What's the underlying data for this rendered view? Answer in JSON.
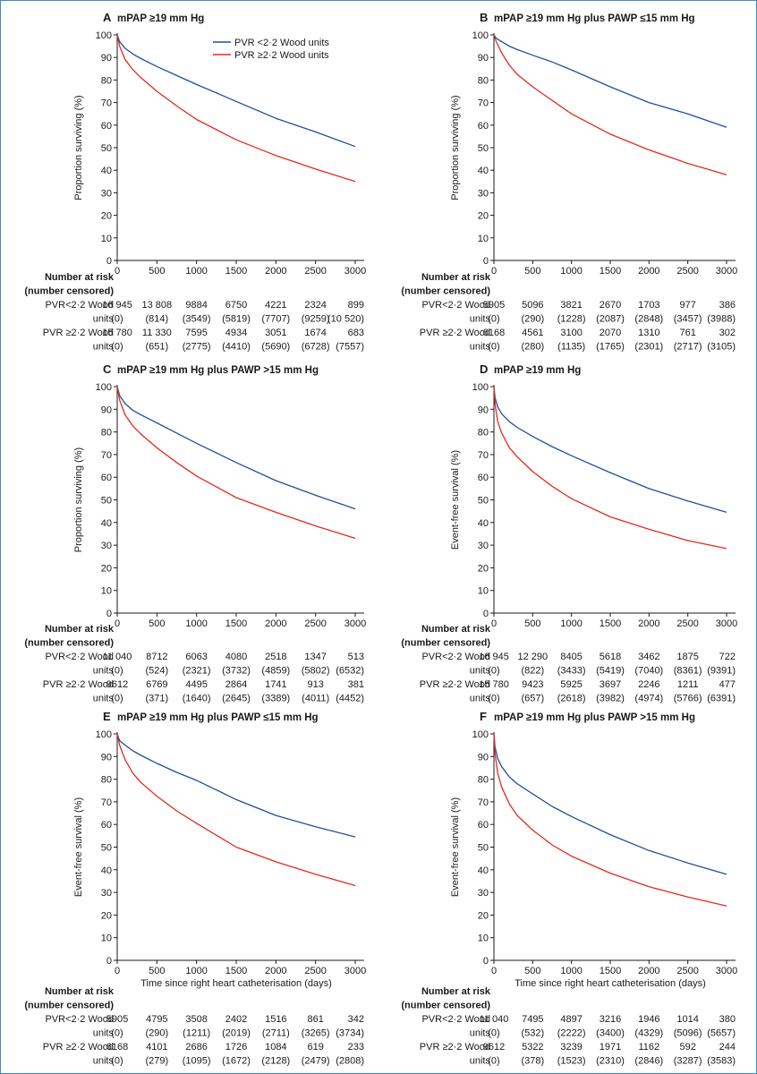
{
  "legend": {
    "items": [
      {
        "label": "PVR <2·2 Wood units",
        "color": "#1f4f9e"
      },
      {
        "label": "PVR ≥2·2 Wood units",
        "color": "#e32a1c"
      }
    ]
  },
  "risk_table": {
    "header_line1": "Number at risk",
    "header_line2": "(number censored)",
    "group_low_line1": "PVR<2·2 Wood",
    "group_high_line1": "PVR ≥2·2 Wood",
    "units_label": "units"
  },
  "chart_data": [
    {
      "panel": "A",
      "title": "mPAP ≥19 mm Hg",
      "type": "line",
      "ylabel": "Proportion surviving (%)",
      "xlabel": "",
      "xlim": [
        0,
        3000
      ],
      "ylim": [
        0,
        100
      ],
      "xticks": [
        0,
        500,
        1000,
        1500,
        2000,
        2500,
        3000
      ],
      "yticks": [
        0,
        10,
        20,
        30,
        40,
        50,
        60,
        70,
        80,
        90,
        100
      ],
      "series": [
        {
          "name": "PVR <2·2 Wood units",
          "color": "#1f4f9e",
          "x": [
            0,
            30,
            100,
            200,
            300,
            500,
            750,
            1000,
            1500,
            2000,
            2500,
            3000
          ],
          "y": [
            100,
            97,
            94,
            91.5,
            89.5,
            86,
            82,
            78,
            70.5,
            63,
            57,
            50.5
          ]
        },
        {
          "name": "PVR ≥2·2 Wood units",
          "color": "#e32a1c",
          "x": [
            0,
            30,
            100,
            200,
            300,
            500,
            750,
            1000,
            1500,
            2000,
            2500,
            3000
          ],
          "y": [
            100,
            95,
            89,
            84.5,
            81,
            75,
            68.5,
            62.5,
            53.5,
            46.5,
            40.5,
            35
          ]
        }
      ],
      "risk_low": [
        "16 945",
        "13 808",
        "9884",
        "6750",
        "4221",
        "2324",
        "899"
      ],
      "cens_low": [
        "(0)",
        "(814)",
        "(3549)",
        "(5819)",
        "(7707)",
        "(9259)",
        "(10 520)"
      ],
      "risk_high": [
        "15 780",
        "11 330",
        "7595",
        "4934",
        "3051",
        "1674",
        "683"
      ],
      "cens_high": [
        "(0)",
        "(651)",
        "(2775)",
        "(4410)",
        "(5690)",
        "(6728)",
        "(7557)"
      ]
    },
    {
      "panel": "B",
      "title": "mPAP ≥19 mm Hg plus PAWP ≤15 mm Hg",
      "type": "line",
      "ylabel": "Proportion surviving (%)",
      "xlabel": "",
      "xlim": [
        0,
        3000
      ],
      "ylim": [
        0,
        100
      ],
      "xticks": [
        0,
        500,
        1000,
        1500,
        2000,
        2500,
        3000
      ],
      "yticks": [
        0,
        10,
        20,
        30,
        40,
        50,
        60,
        70,
        80,
        90,
        100
      ],
      "series": [
        {
          "name": "PVR <2·2 Wood units",
          "color": "#1f4f9e",
          "x": [
            0,
            30,
            100,
            200,
            300,
            500,
            750,
            1000,
            1500,
            2000,
            2500,
            3000
          ],
          "y": [
            100,
            98.5,
            97,
            95,
            93.5,
            91,
            88,
            84.5,
            77,
            70,
            65,
            59
          ]
        },
        {
          "name": "PVR ≥2·2 Wood units",
          "color": "#e32a1c",
          "x": [
            0,
            30,
            100,
            200,
            300,
            500,
            750,
            1000,
            1500,
            2000,
            2500,
            3000
          ],
          "y": [
            100,
            97,
            92,
            86.5,
            82.5,
            77,
            71,
            65,
            56,
            49,
            43,
            38
          ]
        }
      ],
      "risk_low": [
        "5905",
        "5096",
        "3821",
        "2670",
        "1703",
        "977",
        "386"
      ],
      "cens_low": [
        "(0)",
        "(290)",
        "(1228)",
        "(2087)",
        "(2848)",
        "(3457)",
        "(3988)"
      ],
      "risk_high": [
        "6168",
        "4561",
        "3100",
        "2070",
        "1310",
        "761",
        "302"
      ],
      "cens_high": [
        "(0)",
        "(280)",
        "(1135)",
        "(1765)",
        "(2301)",
        "(2717)",
        "(3105)"
      ]
    },
    {
      "panel": "C",
      "title": "mPAP ≥19 mm Hg plus PAWP >15 mm Hg",
      "type": "line",
      "ylabel": "Proportion surviving (%)",
      "xlabel": "",
      "xlim": [
        0,
        3000
      ],
      "ylim": [
        0,
        100
      ],
      "xticks": [
        0,
        500,
        1000,
        1500,
        2000,
        2500,
        3000
      ],
      "yticks": [
        0,
        10,
        20,
        30,
        40,
        50,
        60,
        70,
        80,
        90,
        100
      ],
      "series": [
        {
          "name": "PVR <2·2 Wood units",
          "color": "#1f4f9e",
          "x": [
            0,
            30,
            100,
            200,
            300,
            500,
            750,
            1000,
            1500,
            2000,
            2500,
            3000
          ],
          "y": [
            100,
            96,
            92.5,
            89.5,
            87.5,
            84,
            79.5,
            75,
            66.5,
            58.5,
            52,
            46
          ]
        },
        {
          "name": "PVR ≥2·2 Wood units",
          "color": "#e32a1c",
          "x": [
            0,
            30,
            100,
            200,
            300,
            500,
            750,
            1000,
            1500,
            2000,
            2500,
            3000
          ],
          "y": [
            100,
            94,
            87.5,
            82.5,
            79,
            73,
            66.5,
            60.5,
            51,
            44.5,
            38.5,
            33
          ]
        }
      ],
      "risk_low": [
        "11 040",
        "8712",
        "6063",
        "4080",
        "2518",
        "1347",
        "513"
      ],
      "cens_low": [
        "(0)",
        "(524)",
        "(2321)",
        "(3732)",
        "(4859)",
        "(5802)",
        "(6532)"
      ],
      "risk_high": [
        "9612",
        "6769",
        "4495",
        "2864",
        "1741",
        "913",
        "381"
      ],
      "cens_high": [
        "(0)",
        "(371)",
        "(1640)",
        "(2645)",
        "(3389)",
        "(4011)",
        "(4452)"
      ]
    },
    {
      "panel": "D",
      "title": "mPAP ≥19 mm Hg",
      "type": "line",
      "ylabel": "Event-free survival (%)",
      "xlabel": "",
      "xlim": [
        0,
        3000
      ],
      "ylim": [
        0,
        100
      ],
      "xticks": [
        0,
        500,
        1000,
        1500,
        2000,
        2500,
        3000
      ],
      "yticks": [
        0,
        10,
        20,
        30,
        40,
        50,
        60,
        70,
        80,
        90,
        100
      ],
      "series": [
        {
          "name": "PVR <2·2 Wood units",
          "color": "#1f4f9e",
          "x": [
            0,
            15,
            50,
            100,
            200,
            300,
            500,
            750,
            1000,
            1500,
            2000,
            2500,
            3000
          ],
          "y": [
            100,
            95,
            91,
            88,
            84.5,
            82,
            78,
            73.5,
            69.5,
            62,
            55,
            49.5,
            44.5
          ]
        },
        {
          "name": "PVR ≥2·2 Wood units",
          "color": "#e32a1c",
          "x": [
            0,
            15,
            50,
            100,
            200,
            300,
            500,
            750,
            1000,
            1500,
            2000,
            2500,
            3000
          ],
          "y": [
            100,
            92,
            84.5,
            79.5,
            73,
            69,
            62.5,
            56,
            50.5,
            42.5,
            37,
            32,
            28.5
          ]
        }
      ],
      "risk_low": [
        "16 945",
        "12 290",
        "8405",
        "5618",
        "3462",
        "1875",
        "722"
      ],
      "cens_low": [
        "(0)",
        "(822)",
        "(3433)",
        "(5419)",
        "(7040)",
        "(8361)",
        "(9391)"
      ],
      "risk_high": [
        "15 780",
        "9423",
        "5925",
        "3697",
        "2246",
        "1211",
        "477"
      ],
      "cens_high": [
        "(0)",
        "(657)",
        "(2618)",
        "(3982)",
        "(4974)",
        "(5766)",
        "(6391)"
      ]
    },
    {
      "panel": "E",
      "title": "mPAP ≥19 mm Hg plus PAWP ≤15 mm Hg",
      "type": "line",
      "ylabel": "Event-free survival (%)",
      "xlabel": "Time since right heart catheterisation (days)",
      "xlim": [
        0,
        3000
      ],
      "ylim": [
        0,
        100
      ],
      "xticks": [
        0,
        500,
        1000,
        1500,
        2000,
        2500,
        3000
      ],
      "yticks": [
        0,
        10,
        20,
        30,
        40,
        50,
        60,
        70,
        80,
        90,
        100
      ],
      "series": [
        {
          "name": "PVR <2·2 Wood units",
          "color": "#1f4f9e",
          "x": [
            0,
            30,
            100,
            200,
            300,
            500,
            750,
            1000,
            1500,
            2000,
            2500,
            3000
          ],
          "y": [
            100,
            97,
            95,
            92.5,
            90.5,
            87,
            83,
            79.5,
            71,
            64,
            59,
            54.5
          ]
        },
        {
          "name": "PVR ≥2·2 Wood units",
          "color": "#e32a1c",
          "x": [
            0,
            30,
            100,
            200,
            300,
            500,
            750,
            1000,
            1500,
            2000,
            2500,
            3000
          ],
          "y": [
            100,
            95,
            88.5,
            82.5,
            78.5,
            72.5,
            66,
            60.5,
            50,
            43.5,
            38,
            33
          ]
        }
      ],
      "risk_low": [
        "5905",
        "4795",
        "3508",
        "2402",
        "1516",
        "861",
        "342"
      ],
      "cens_low": [
        "(0)",
        "(290)",
        "(1211)",
        "(2019)",
        "(2711)",
        "(3265)",
        "(3734)"
      ],
      "risk_high": [
        "6168",
        "4101",
        "2686",
        "1726",
        "1084",
        "619",
        "233"
      ],
      "cens_high": [
        "(0)",
        "(279)",
        "(1095)",
        "(1672)",
        "(2128)",
        "(2479)",
        "(2808)"
      ]
    },
    {
      "panel": "F",
      "title": "mPAP ≥19 mm Hg plus PAWP >15 mm Hg",
      "type": "line",
      "ylabel": "Event-free survival (%)",
      "xlabel": "Time since right heart catheterisation (days)",
      "xlim": [
        0,
        3000
      ],
      "ylim": [
        0,
        100
      ],
      "xticks": [
        0,
        500,
        1000,
        1500,
        2000,
        2500,
        3000
      ],
      "yticks": [
        0,
        10,
        20,
        30,
        40,
        50,
        60,
        70,
        80,
        90,
        100
      ],
      "series": [
        {
          "name": "PVR <2·2 Wood units",
          "color": "#1f4f9e",
          "x": [
            0,
            15,
            50,
            100,
            200,
            300,
            500,
            750,
            1000,
            1500,
            2000,
            2500,
            3000
          ],
          "y": [
            100,
            94,
            89,
            85.5,
            81,
            78,
            73.5,
            68,
            63.5,
            55.5,
            48.5,
            43,
            38
          ]
        },
        {
          "name": "PVR ≥2·2 Wood units",
          "color": "#e32a1c",
          "x": [
            0,
            15,
            50,
            100,
            200,
            300,
            500,
            750,
            1000,
            1500,
            2000,
            2500,
            3000
          ],
          "y": [
            100,
            91,
            82.5,
            76.5,
            69,
            64,
            57.5,
            51,
            46,
            38.5,
            32.5,
            28,
            24
          ]
        }
      ],
      "risk_low": [
        "11 040",
        "7495",
        "4897",
        "3216",
        "1946",
        "1014",
        "380"
      ],
      "cens_low": [
        "(0)",
        "(532)",
        "(2222)",
        "(3400)",
        "(4329)",
        "(5096)",
        "(5657)"
      ],
      "risk_high": [
        "9612",
        "5322",
        "3239",
        "1971",
        "1162",
        "592",
        "244"
      ],
      "cens_high": [
        "(0)",
        "(378)",
        "(1523)",
        "(2310)",
        "(2846)",
        "(3287)",
        "(3583)"
      ]
    }
  ]
}
